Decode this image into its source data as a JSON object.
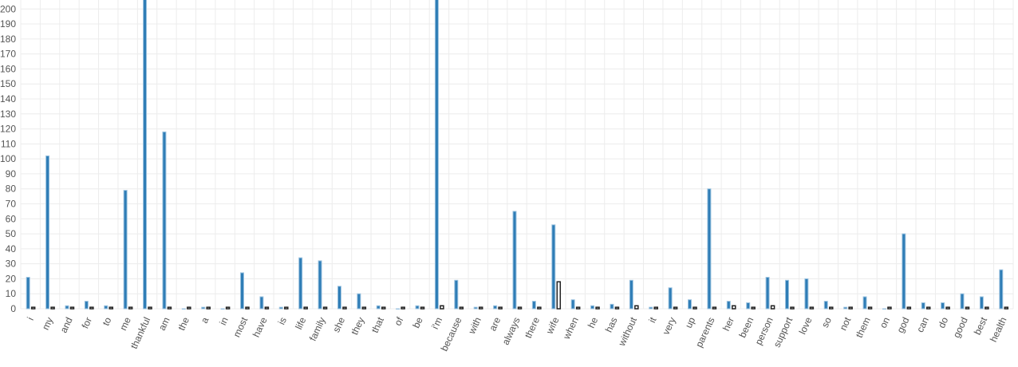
{
  "chart_data": {
    "type": "bar",
    "categories": [
      "i",
      "my",
      "and",
      "for",
      "to",
      "me",
      "thankful",
      "am",
      "the",
      "a",
      "in",
      "most",
      "have",
      "is",
      "life",
      "family",
      "she",
      "they",
      "that",
      "of",
      "be",
      "i'm",
      "because",
      "with",
      "are",
      "always",
      "there",
      "wife",
      "when",
      "he",
      "has",
      "without",
      "it",
      "very",
      "up",
      "parents",
      "her",
      "been",
      "person",
      "support",
      "love",
      "so",
      "not",
      "them",
      "on",
      "god",
      "can",
      "do",
      "good",
      "best",
      "health"
    ],
    "series": [
      {
        "color": "#2f7db6",
        "values": [
          21,
          102,
          2,
          5,
          2,
          79,
          210,
          118,
          0,
          1,
          0,
          24,
          8,
          1,
          34,
          32,
          15,
          10,
          2,
          0,
          2,
          210,
          19,
          1,
          2,
          65,
          5,
          56,
          6,
          2,
          3,
          19,
          1,
          14,
          6,
          80,
          5,
          4,
          21,
          19,
          20,
          5,
          1,
          8,
          0,
          50,
          4,
          4,
          10,
          8,
          26
        ]
      },
      {
        "color": "#222222",
        "values": [
          1,
          1,
          1,
          1,
          1,
          1,
          1,
          1,
          1,
          1,
          1,
          1,
          1,
          1,
          1,
          1,
          1,
          1,
          1,
          1,
          1,
          2,
          1,
          1,
          1,
          1,
          1,
          18,
          1,
          1,
          1,
          2,
          1,
          1,
          1,
          1,
          2,
          1,
          2,
          1,
          1,
          1,
          1,
          1,
          1,
          1,
          1,
          1,
          1,
          1,
          1
        ]
      }
    ],
    "ylim": [
      0,
      206
    ],
    "yticks": [
      0,
      10,
      20,
      30,
      40,
      50,
      60,
      70,
      80,
      90,
      100,
      110,
      120,
      130,
      140,
      150,
      160,
      170,
      180,
      190,
      200
    ],
    "grid": true
  }
}
